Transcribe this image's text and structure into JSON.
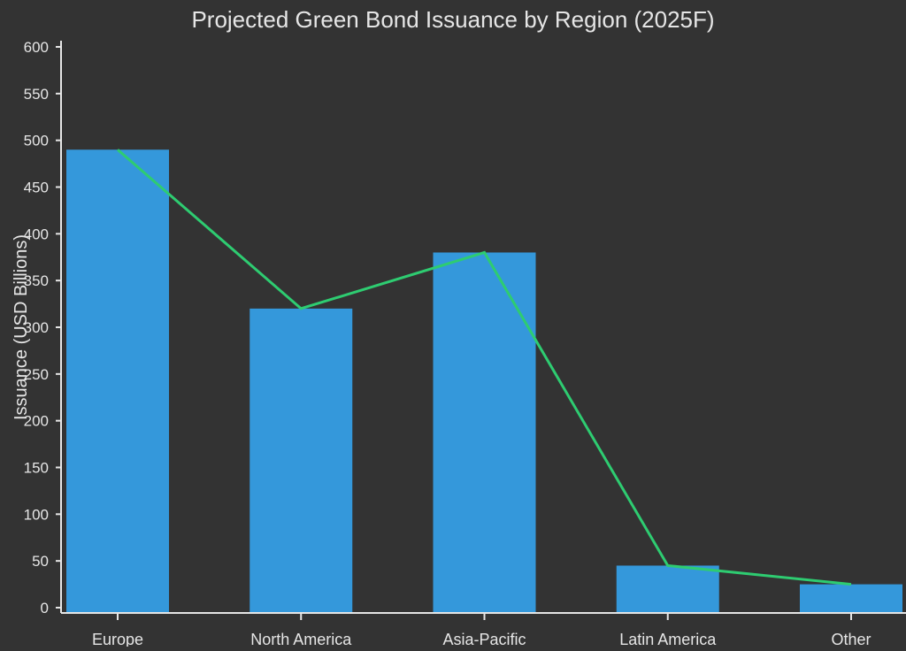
{
  "chart_data": {
    "type": "bar",
    "title": "Projected Green Bond Issuance by Region (2025F)",
    "xlabel": "",
    "ylabel": "Issuance (USD Billions)",
    "categories": [
      "Europe",
      "North America",
      "Asia-Pacific",
      "Latin America",
      "Other"
    ],
    "values": [
      490,
      320,
      380,
      45,
      25
    ],
    "overlay_line": {
      "type": "line",
      "values": [
        490,
        320,
        380,
        45,
        25
      ]
    },
    "ylim": [
      0,
      600
    ],
    "yticks": [
      0,
      50,
      100,
      150,
      200,
      250,
      300,
      350,
      400,
      450,
      500,
      550,
      600
    ],
    "grid": false,
    "colors": {
      "bar": "#3498db",
      "line": "#2ecc71",
      "background": "#333333",
      "text": "#e6e6e6"
    }
  }
}
